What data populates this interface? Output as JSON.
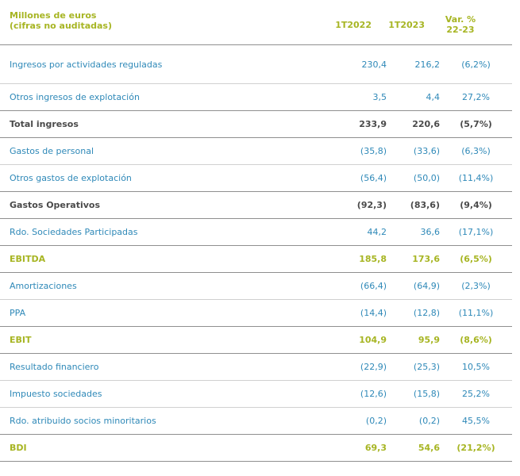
{
  "header": {
    "label_line1": "Millones de euros",
    "label_line2": "(cifras no auditadas)",
    "col1": "1T2022",
    "col2": "1T2023",
    "col3_line1": "Var. %",
    "col3_line2": "22-23"
  },
  "rows": [
    {
      "name": "Ingresos por actividades reguladas",
      "v1": "230,4",
      "v2": "216,2",
      "v3": "(6,2%)"
    },
    {
      "name": "Otros ingresos de explotación",
      "v1": "3,5",
      "v2": "4,4",
      "v3": "27,2%"
    },
    {
      "name": "Total ingresos",
      "v1": "233,9",
      "v2": "220,6",
      "v3": "(5,7%)"
    },
    {
      "name": "Gastos de personal",
      "v1": "(35,8)",
      "v2": "(33,6)",
      "v3": "(6,3%)"
    },
    {
      "name": "Otros gastos de explotación",
      "v1": "(56,4)",
      "v2": "(50,0)",
      "v3": "(11,4%)"
    },
    {
      "name": "Gastos Operativos",
      "v1": "(92,3)",
      "v2": "(83,6)",
      "v3": "(9,4%)"
    },
    {
      "name": "Rdo. Sociedades Participadas",
      "v1": "44,2",
      "v2": "36,6",
      "v3": "(17,1%)"
    },
    {
      "name": "EBITDA",
      "v1": "185,8",
      "v2": "173,6",
      "v3": "(6,5%)"
    },
    {
      "name": "Amortizaciones",
      "v1": "(66,4)",
      "v2": "(64,9)",
      "v3": "(2,3%)"
    },
    {
      "name": "PPA",
      "v1": "(14,4)",
      "v2": "(12,8)",
      "v3": "(11,1%)"
    },
    {
      "name": "EBIT",
      "v1": "104,9",
      "v2": "95,9",
      "v3": "(8,6%)"
    },
    {
      "name": "Resultado financiero",
      "v1": "(22,9)",
      "v2": "(25,3)",
      "v3": "10,5%"
    },
    {
      "name": "Impuesto sociedades",
      "v1": "(12,6)",
      "v2": "(15,8)",
      "v3": "25,2%"
    },
    {
      "name": "Rdo. atribuido socios minoritarios",
      "v1": "(0,2)",
      "v2": "(0,2)",
      "v3": "45,5%"
    },
    {
      "name": "BDI",
      "v1": "69,3",
      "v2": "54,6",
      "v3": "(21,2%)"
    }
  ],
  "colors": {
    "green": "#a7b523",
    "blue": "#2f89b8",
    "dark": "#4a4a4a"
  }
}
